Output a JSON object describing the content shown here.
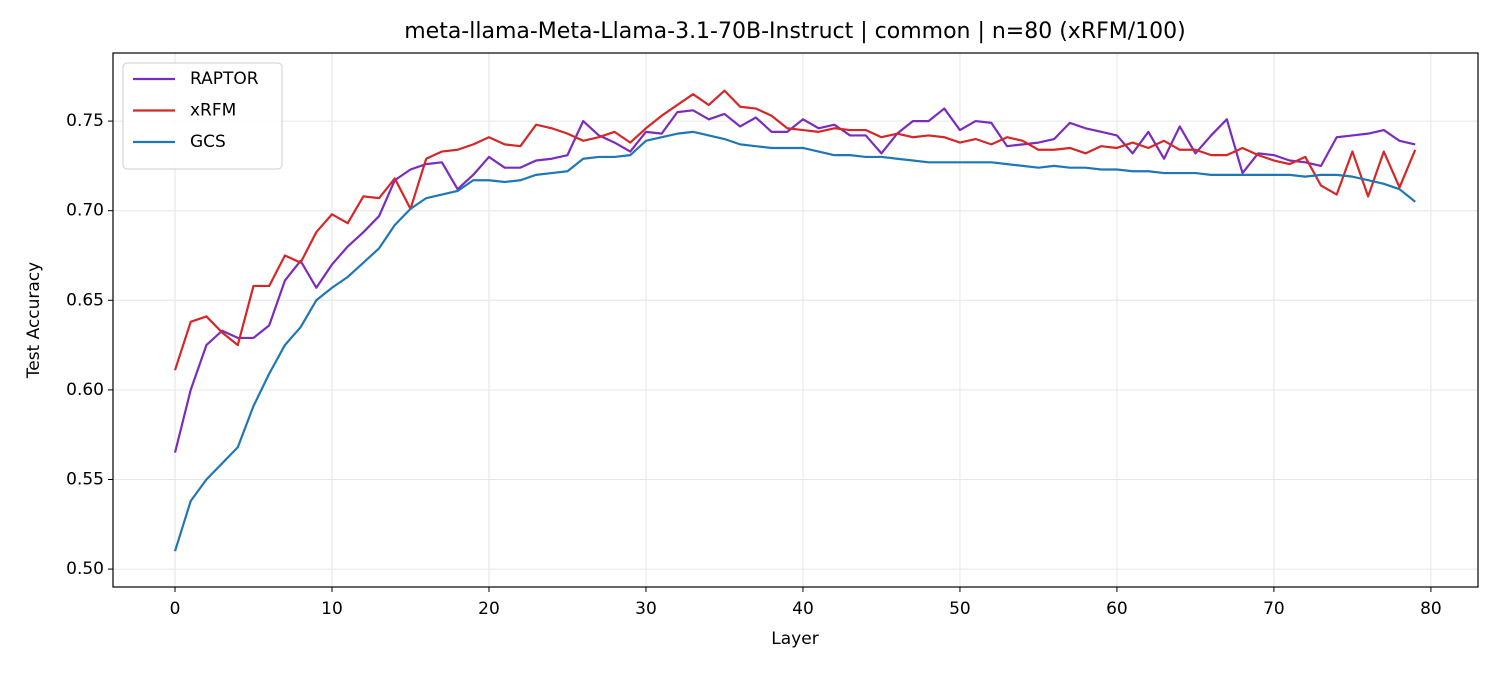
{
  "chart_data": {
    "type": "line",
    "title": "meta-llama-Meta-Llama-3.1-70B-Instruct | common | n=80 (xRFM/100)",
    "x_label": "Layer",
    "y_label": "Test Accuracy",
    "x": [
      0,
      1,
      2,
      3,
      4,
      5,
      6,
      7,
      8,
      9,
      10,
      11,
      12,
      13,
      14,
      15,
      16,
      17,
      18,
      19,
      20,
      21,
      22,
      23,
      24,
      25,
      26,
      27,
      28,
      29,
      30,
      31,
      32,
      33,
      34,
      35,
      36,
      37,
      38,
      39,
      40,
      41,
      42,
      43,
      44,
      45,
      46,
      47,
      48,
      49,
      50,
      51,
      52,
      53,
      54,
      55,
      56,
      57,
      58,
      59,
      60,
      61,
      62,
      63,
      64,
      65,
      66,
      67,
      68,
      69,
      70,
      71,
      72,
      73,
      74,
      75,
      76,
      77,
      78,
      79
    ],
    "series": [
      {
        "name": "RAPTOR",
        "color": "#7b2cbf",
        "values": [
          0.565,
          0.6,
          0.625,
          0.633,
          0.629,
          0.629,
          0.636,
          0.661,
          0.672,
          0.657,
          0.67,
          0.68,
          0.688,
          0.697,
          0.717,
          0.723,
          0.726,
          0.727,
          0.712,
          0.72,
          0.73,
          0.724,
          0.724,
          0.728,
          0.729,
          0.731,
          0.75,
          0.742,
          0.738,
          0.733,
          0.744,
          0.743,
          0.755,
          0.756,
          0.751,
          0.754,
          0.747,
          0.752,
          0.744,
          0.744,
          0.751,
          0.746,
          0.748,
          0.742,
          0.742,
          0.732,
          0.743,
          0.75,
          0.75,
          0.757,
          0.745,
          0.75,
          0.749,
          0.736,
          0.737,
          0.738,
          0.74,
          0.749,
          0.746,
          0.744,
          0.742,
          0.732,
          0.744,
          0.729,
          0.747,
          0.732,
          0.742,
          0.751,
          0.721,
          0.732,
          0.731,
          0.728,
          0.727,
          0.725,
          0.741,
          0.742,
          0.743,
          0.745,
          0.739,
          0.737
        ]
      },
      {
        "name": "xRFM",
        "color": "#d62728",
        "values": [
          0.611,
          0.638,
          0.641,
          0.632,
          0.625,
          0.658,
          0.658,
          0.675,
          0.671,
          0.688,
          0.698,
          0.693,
          0.708,
          0.707,
          0.718,
          0.701,
          0.729,
          0.733,
          0.734,
          0.737,
          0.741,
          0.737,
          0.736,
          0.748,
          0.746,
          0.743,
          0.739,
          0.741,
          0.744,
          0.738,
          0.746,
          0.753,
          0.759,
          0.765,
          0.759,
          0.767,
          0.758,
          0.757,
          0.753,
          0.746,
          0.745,
          0.744,
          0.746,
          0.745,
          0.745,
          0.741,
          0.743,
          0.741,
          0.742,
          0.741,
          0.738,
          0.74,
          0.737,
          0.741,
          0.739,
          0.734,
          0.734,
          0.735,
          0.732,
          0.736,
          0.735,
          0.738,
          0.735,
          0.739,
          0.734,
          0.734,
          0.731,
          0.731,
          0.735,
          0.731,
          0.728,
          0.726,
          0.73,
          0.714,
          0.709,
          0.733,
          0.708,
          0.733,
          0.713,
          0.734
        ]
      },
      {
        "name": "GCS",
        "color": "#1f77b4",
        "values": [
          0.51,
          0.538,
          0.55,
          0.559,
          0.568,
          0.591,
          0.609,
          0.625,
          0.635,
          0.65,
          0.657,
          0.663,
          0.671,
          0.679,
          0.692,
          0.701,
          0.707,
          0.709,
          0.711,
          0.717,
          0.717,
          0.716,
          0.717,
          0.72,
          0.721,
          0.722,
          0.729,
          0.73,
          0.73,
          0.731,
          0.739,
          0.741,
          0.743,
          0.744,
          0.742,
          0.74,
          0.737,
          0.736,
          0.735,
          0.735,
          0.735,
          0.733,
          0.731,
          0.731,
          0.73,
          0.73,
          0.729,
          0.728,
          0.727,
          0.727,
          0.727,
          0.727,
          0.727,
          0.726,
          0.725,
          0.724,
          0.725,
          0.724,
          0.724,
          0.723,
          0.723,
          0.722,
          0.722,
          0.721,
          0.721,
          0.721,
          0.72,
          0.72,
          0.72,
          0.72,
          0.72,
          0.72,
          0.719,
          0.72,
          0.72,
          0.719,
          0.717,
          0.715,
          0.712,
          0.705
        ]
      }
    ],
    "xlim": [
      -3.95,
      83.0
    ],
    "ylim": [
      0.49,
      0.788
    ],
    "xticks": [
      0,
      10,
      20,
      30,
      40,
      50,
      60,
      70,
      80
    ],
    "yticks": [
      {
        "value": 0.5,
        "label": "0.50"
      },
      0.55,
      {
        "value": 0.6,
        "label": "0.60"
      },
      0.65,
      {
        "value": 0.7,
        "label": "0.70"
      },
      0.75
    ],
    "grid": true,
    "legend": "upper left"
  }
}
